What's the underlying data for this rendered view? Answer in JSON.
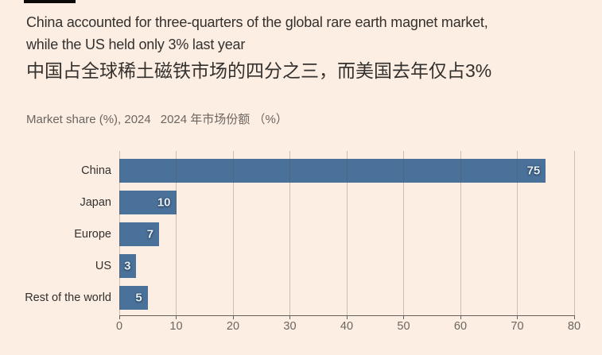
{
  "header": {
    "title_en_line1": "China accounted for three-quarters of the global rare earth magnet market,",
    "title_en_line2": "while the US held only 3% last year",
    "title_zh": "中国占全球稀土磁铁市场的四分之三，而美国去年仅占3%",
    "subtitle_en": "Market share (%), 2024",
    "subtitle_zh": "2024 年市场份额 （%）"
  },
  "chart_data": {
    "type": "bar",
    "orientation": "horizontal",
    "title": "China accounted for three-quarters of the global rare earth magnet market, while the US held only 3% last year",
    "title_zh": "中国占全球稀土磁铁市场的四分之三，而美国去年仅占3%",
    "subtitle": "Market share (%), 2024  2024 年市场份额 （%）",
    "categories": [
      "China",
      "Japan",
      "Europe",
      "US",
      "Rest of the world"
    ],
    "values": [
      75,
      10,
      7,
      3,
      5
    ],
    "x_ticks": [
      0,
      10,
      20,
      30,
      40,
      50,
      60,
      70,
      80
    ],
    "xlim": [
      0,
      80
    ],
    "grid": "vertical-gridlines-over-bars",
    "legend": "none",
    "value_labels_inside_bar_end": true,
    "colors": {
      "background": "#FCEEE3",
      "bar": "#4A7199",
      "value_label": "#E9EFF6",
      "text_dark": "#33302E",
      "text_muted": "#6B6560",
      "axis": "#66605C",
      "top_rule": "#0d0b0a"
    }
  }
}
